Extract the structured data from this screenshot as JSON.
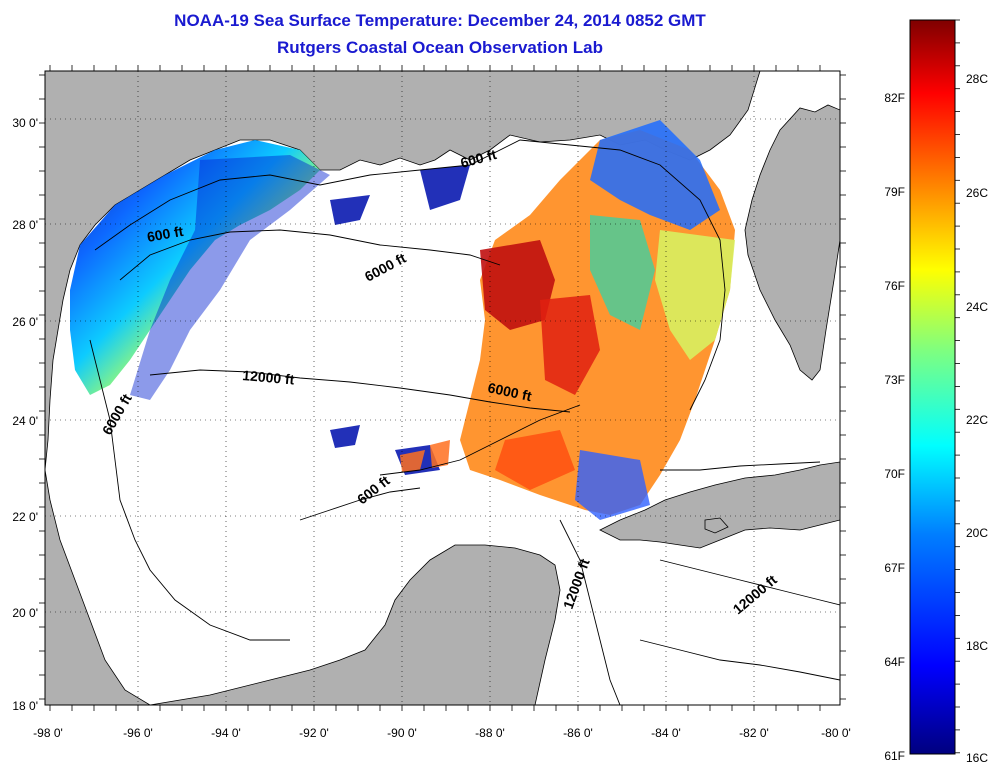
{
  "header": {
    "title_line1": "NOAA-19 Sea Surface Temperature:  December 24, 2014 0852 GMT",
    "title_line2": "Rutgers Coastal Ocean Observation Lab"
  },
  "map": {
    "lon_ticks": [
      "-98 0'",
      "-96 0'",
      "-94 0'",
      "-92 0'",
      "-90 0'",
      "-88 0'",
      "-86 0'",
      "-84 0'",
      "-82 0'",
      "-80 0'"
    ],
    "lat_ticks": [
      "30 0'",
      "28 0'",
      "26 0'",
      "24 0'",
      "22 0'",
      "20 0'",
      "18 0'"
    ],
    "contour_labels": [
      {
        "text": "600 ft",
        "id": "contour-600-texas"
      },
      {
        "text": "600 ft",
        "id": "contour-600-louisiana"
      },
      {
        "text": "6000 ft",
        "id": "contour-6000-north"
      },
      {
        "text": "12000 ft",
        "id": "contour-12000-central"
      },
      {
        "text": "6000 ft",
        "id": "contour-6000-west"
      },
      {
        "text": "6000 ft",
        "id": "contour-6000-east"
      },
      {
        "text": "600 ft",
        "id": "contour-600-yucatan"
      },
      {
        "text": "12000 ft",
        "id": "contour-12000-caribbean-1"
      },
      {
        "text": "12000 ft",
        "id": "contour-12000-caribbean-2"
      }
    ],
    "land_color": "#b0b0b0",
    "ocean_color": "#ffffff"
  },
  "colorbar": {
    "celsius_labels": [
      "28C",
      "26C",
      "24C",
      "22C",
      "20C",
      "18C",
      "16C"
    ],
    "fahrenheit_labels": [
      "82F",
      "79F",
      "76F",
      "73F",
      "70F",
      "67F",
      "64F",
      "61F"
    ],
    "colormap": [
      "#00007f",
      "#0000ff",
      "#007fff",
      "#00ffff",
      "#7fff7f",
      "#ffff00",
      "#ff7f00",
      "#ff0000",
      "#7f0000"
    ]
  }
}
